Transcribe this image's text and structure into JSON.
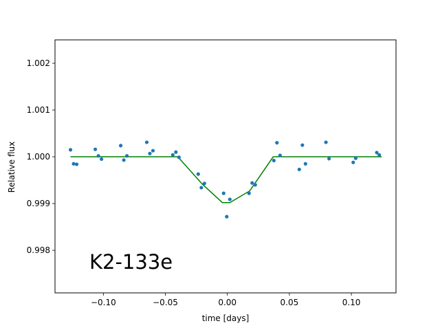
{
  "chart_data": {
    "type": "scatter",
    "title": "",
    "xlabel": "time [days]",
    "ylabel": "Relative flux",
    "annotation": "K2-133e",
    "xlim": [
      -0.139,
      0.136
    ],
    "ylim": [
      0.99709,
      1.0025
    ],
    "grid": false,
    "x_ticks": [
      -0.1,
      -0.05,
      0.0,
      0.05,
      0.1
    ],
    "x_tick_labels": [
      "−0.10",
      "−0.05",
      "0.00",
      "0.05",
      "0.10"
    ],
    "y_ticks": [
      0.998,
      0.999,
      1.0,
      1.001,
      1.002
    ],
    "y_tick_labels": [
      "0.998",
      "0.999",
      "1.000",
      "1.001",
      "1.002"
    ],
    "colors": {
      "points": "#1f77b4",
      "model": "#008000",
      "frame": "#000000"
    },
    "series": [
      {
        "kind": "points",
        "x": [
          -0.1265,
          -0.124,
          -0.1215,
          -0.1065,
          -0.104,
          -0.1015,
          -0.086,
          -0.0835,
          -0.081,
          -0.065,
          -0.0625,
          -0.06,
          -0.044,
          -0.0415,
          -0.039,
          -0.0235,
          -0.021,
          -0.0185,
          -0.003,
          -0.0005,
          0.002,
          0.0175,
          0.02,
          0.0225,
          0.0375,
          0.04,
          0.0425,
          0.058,
          0.0605,
          0.063,
          0.0795,
          0.082,
          0.1015,
          0.1035,
          0.1205,
          0.1225
        ],
        "y": [
          1.00015,
          0.99985,
          0.99984,
          1.00016,
          1.00002,
          0.99995,
          1.00024,
          0.99993,
          1.00002,
          1.00031,
          1.00007,
          1.00013,
          1.00004,
          1.0001,
          0.99999,
          0.99963,
          0.99934,
          0.99943,
          0.99922,
          0.99872,
          0.99909,
          0.99922,
          0.99944,
          0.9994,
          0.99992,
          1.0003,
          1.00003,
          0.99973,
          1.00025,
          0.99985,
          1.00031,
          0.99996,
          0.99988,
          0.99997,
          1.00009,
          1.00004
        ]
      },
      {
        "kind": "line",
        "x": [
          -0.1265,
          -0.04,
          -0.02,
          -0.004,
          0.002,
          0.018,
          0.037,
          0.1245
        ],
        "y": [
          1.0,
          1.0,
          0.99941,
          0.99902,
          0.99902,
          0.99927,
          1.0,
          1.0
        ]
      }
    ]
  }
}
